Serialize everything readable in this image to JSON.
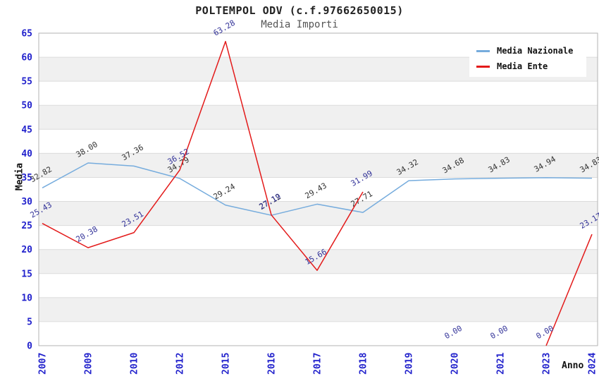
{
  "chart_data": {
    "type": "line",
    "title": "POLTEMPOL ODV (c.f.97662650015)",
    "subtitle": "Media Importi",
    "xlabel": "Anno",
    "ylabel": "Media",
    "ylim": [
      0,
      65
    ],
    "ytick_step": 5,
    "grid": "horizontal-bands",
    "legend_position": "top-right",
    "categories": [
      "2007",
      "2009",
      "2010",
      "2012",
      "2015",
      "2016",
      "2017",
      "2018",
      "2019",
      "2020",
      "2021",
      "2023",
      "2024"
    ],
    "series": [
      {
        "name": "Media Nazionale",
        "color": "#76acdd",
        "label_color": "#333333",
        "values": [
          32.82,
          38.0,
          37.36,
          34.79,
          29.24,
          27.12,
          29.43,
          27.71,
          34.32,
          34.68,
          34.83,
          34.94,
          34.83
        ]
      },
      {
        "name": "Media Ente",
        "color": "#e31a1a",
        "label_color": "#333399",
        "values": [
          25.43,
          20.38,
          23.51,
          36.52,
          63.28,
          27.19,
          15.66,
          31.99,
          null,
          0.0,
          0.0,
          0.0,
          23.17
        ]
      }
    ],
    "colors": {
      "tick_label": "#2222cc",
      "band_gray": "#f0f0f0",
      "gridline": "#dcdcdc",
      "plot_border": "#b3b3b3",
      "title": "#222222",
      "subtitle": "#555555"
    }
  }
}
